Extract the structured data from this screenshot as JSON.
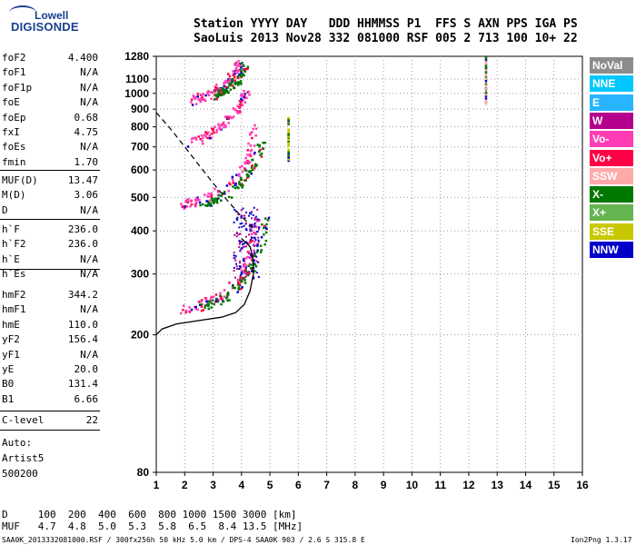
{
  "logo": {
    "line1": "Lowell",
    "line2": "DIGISONDE"
  },
  "header": {
    "line1": "Station YYYY DAY   DDD HHMMSS P1  FFS S AXN PPS IGA PS",
    "line2": "SaoLuis 2013 Nov28 332 081000 RSF 005 2 713 100 10+ 22"
  },
  "params": {
    "group1": [
      {
        "name": "foF2",
        "value": "4.400"
      },
      {
        "name": "foF1",
        "value": "N/A"
      },
      {
        "name": "foF1p",
        "value": "N/A"
      },
      {
        "name": "foE",
        "value": "N/A"
      },
      {
        "name": "foEp",
        "value": "0.68"
      },
      {
        "name": "fxI",
        "value": "4.75"
      },
      {
        "name": "foEs",
        "value": "N/A"
      },
      {
        "name": "fmin",
        "value": "1.70"
      }
    ],
    "group2": [
      {
        "name": "MUF(D)",
        "value": "13.47"
      },
      {
        "name": "M(D)",
        "value": "3.06"
      },
      {
        "name": "D",
        "value": "N/A"
      }
    ],
    "group3": [
      {
        "name": "h`F",
        "value": "236.0"
      },
      {
        "name": "h`F2",
        "value": "236.0"
      },
      {
        "name": "h`E",
        "value": "N/A"
      },
      {
        "name": "h`Es",
        "value": "N/A"
      }
    ],
    "group4": [
      {
        "name": "hmF2",
        "value": "344.2"
      },
      {
        "name": "hmF1",
        "value": "N/A"
      },
      {
        "name": "hmE",
        "value": "110.0"
      },
      {
        "name": "yF2",
        "value": "156.4"
      },
      {
        "name": "yF1",
        "value": "N/A"
      },
      {
        "name": "yE",
        "value": "20.0"
      },
      {
        "name": "B0",
        "value": "131.4"
      },
      {
        "name": "B1",
        "value": "6.66"
      }
    ],
    "group5": [
      {
        "name": "C-level",
        "value": "22"
      }
    ]
  },
  "autoscaling": {
    "line1": "Auto:",
    "line2": "Artist5",
    "line3": "500200"
  },
  "legend": [
    {
      "label": "NoVal",
      "color": "#8c8c8c"
    },
    {
      "label": "NNE",
      "color": "#00c8ff"
    },
    {
      "label": "E",
      "color": "#28b4ff"
    },
    {
      "label": "W",
      "color": "#b4008c"
    },
    {
      "label": "Vo-",
      "color": "#ff3cb4"
    },
    {
      "label": "Vo+",
      "color": "#ff0046"
    },
    {
      "label": "SSW",
      "color": "#ffaaaa"
    },
    {
      "label": "X-",
      "color": "#007800"
    },
    {
      "label": "X+",
      "color": "#64b450"
    },
    {
      "label": "SSE",
      "color": "#c8c800"
    },
    {
      "label": "NNW",
      "color": "#0000c8"
    }
  ],
  "bottom": {
    "d_line": "D     100  200  400  600  800 1000 1500 3000 [km]",
    "muf_line": "MUF   4.7  4.8  5.0  5.3  5.8  6.5  8.4 13.5 [MHz]"
  },
  "footer": {
    "left": "SAA0K_2013332081000.RSF / 300fx256h 50 kHz 5.0 km / DPS-4 SAA0K 903 / 2.6 S 315.8 E",
    "right": "Ion2Png 1.3.17"
  },
  "chart_data": {
    "type": "scatter",
    "title": "",
    "xlabel": "",
    "ylabel": "",
    "xlim": [
      1,
      16
    ],
    "ylim": [
      80,
      1280
    ],
    "xticks": [
      1,
      2,
      3,
      4,
      5,
      6,
      7,
      8,
      9,
      10,
      11,
      12,
      13,
      14,
      15,
      16
    ],
    "yticks": [
      80,
      200,
      300,
      400,
      500,
      600,
      700,
      800,
      900,
      1000,
      1100,
      1280
    ],
    "yscale": "log",
    "grid": "dotted",
    "traces": [
      {
        "name": "o-trace F",
        "color": "#ff3cb4",
        "f": [
          1.9,
          2.4,
          3.0,
          3.6,
          4.0,
          4.3,
          4.45
        ],
        "h": [
          238,
          245,
          255,
          275,
          300,
          345,
          420
        ]
      },
      {
        "name": "x-trace F",
        "color": "#007800",
        "f": [
          2.5,
          3.0,
          3.5,
          4.0,
          4.4,
          4.7,
          4.85
        ],
        "h": [
          240,
          248,
          262,
          285,
          320,
          380,
          450
        ]
      },
      {
        "name": "o-trace 2F",
        "color": "#ff3cb4",
        "f": [
          1.9,
          2.4,
          3.0,
          3.6,
          4.0,
          4.3,
          4.4
        ],
        "h": [
          478,
          490,
          510,
          550,
          600,
          690,
          820
        ]
      },
      {
        "name": "x-trace 2F",
        "color": "#007800",
        "f": [
          2.6,
          3.1,
          3.6,
          4.0,
          4.4,
          4.7
        ],
        "h": [
          480,
          495,
          520,
          560,
          620,
          720
        ]
      },
      {
        "name": "o-trace 3F",
        "color": "#ff3cb4",
        "f": [
          2.0,
          2.5,
          3.0,
          3.5,
          3.9,
          4.2
        ],
        "h": [
          720,
          740,
          780,
          840,
          920,
          1030
        ]
      },
      {
        "name": "o-trace 4F",
        "color": "#ff3cb4",
        "f": [
          2.2,
          2.7,
          3.2,
          3.6,
          3.9
        ],
        "h": [
          960,
          990,
          1040,
          1120,
          1230
        ]
      },
      {
        "name": "x-trace 4F",
        "color": "#007800",
        "f": [
          3.0,
          3.4,
          3.8,
          4.1
        ],
        "h": [
          980,
          1020,
          1090,
          1200
        ]
      }
    ],
    "spread": {
      "color": "#0000c8",
      "f": [
        3.7,
        4.6
      ],
      "h": [
        290,
        470
      ]
    },
    "verticals": [
      {
        "f": 12.6,
        "h": [
          930,
          1280
        ],
        "color": "#ffaaaa"
      },
      {
        "f": 5.65,
        "h": [
          640,
          860
        ],
        "color": "#c8c800"
      }
    ],
    "profile": {
      "color": "#000000",
      "dashed": false,
      "f": [
        1.0,
        1.2,
        1.7,
        2.5,
        3.3,
        3.8,
        4.1,
        4.3,
        4.42,
        4.4,
        4.3,
        4.0
      ],
      "h": [
        200,
        208,
        215,
        220,
        225,
        232,
        245,
        268,
        300,
        335,
        360,
        380
      ]
    },
    "muf_curve": {
      "color": "#000000",
      "dashed": true,
      "f": [
        1.0,
        1.5,
        2.0,
        2.5,
        3.0,
        3.5,
        4.0,
        4.4
      ],
      "h": [
        880,
        790,
        700,
        620,
        550,
        490,
        440,
        410
      ]
    }
  }
}
